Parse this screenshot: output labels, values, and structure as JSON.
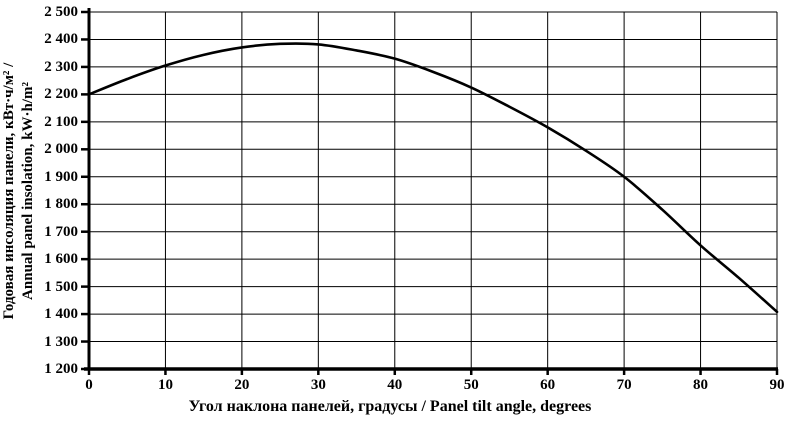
{
  "chart_data": {
    "type": "line",
    "title": "",
    "xlabel": "Угол наклона панелей, градусы / Panel tilt angle, degrees",
    "ylabel": "Годовая инсоляция панели, кВт·ч/м² / Annual panel insolation, kW·h/m²",
    "ylabel_line1": "Годовая инсоляция панели, кВт·ч/м² /",
    "ylabel_line2": "Annual panel insolation, kW·h/m²",
    "xlim": [
      0,
      90
    ],
    "ylim": [
      1200,
      2500
    ],
    "xticks": [
      0,
      10,
      20,
      30,
      40,
      50,
      60,
      70,
      80,
      90
    ],
    "xtick_labels": [
      "0",
      "10",
      "20",
      "30",
      "40",
      "50",
      "60",
      "70",
      "80",
      "90"
    ],
    "yticks": [
      1200,
      1300,
      1400,
      1500,
      1600,
      1700,
      1800,
      1900,
      2000,
      2100,
      2200,
      2300,
      2400,
      2500
    ],
    "ytick_labels": [
      "1 200",
      "1 300",
      "1 400",
      "1 500",
      "1 600",
      "1 700",
      "1 800",
      "1 900",
      "2 000",
      "2 100",
      "2 200",
      "2 300",
      "2 400",
      "2 500"
    ],
    "grid": true,
    "legend_position": "none",
    "line_color": "#000000",
    "axis_color": "#000000",
    "grid_color": "#000000",
    "background_color": "#ffffff",
    "series": [
      {
        "name": "annual-insolation-vs-tilt-angle",
        "x": [
          0,
          5,
          10,
          15,
          20,
          25,
          30,
          35,
          40,
          45,
          50,
          55,
          60,
          65,
          70,
          75,
          80,
          85,
          90
        ],
        "y": [
          2200,
          2256,
          2305,
          2344,
          2371,
          2384,
          2382,
          2360,
          2330,
          2282,
          2225,
          2155,
          2080,
          1995,
          1900,
          1780,
          1650,
          1532,
          1408
        ]
      }
    ]
  }
}
